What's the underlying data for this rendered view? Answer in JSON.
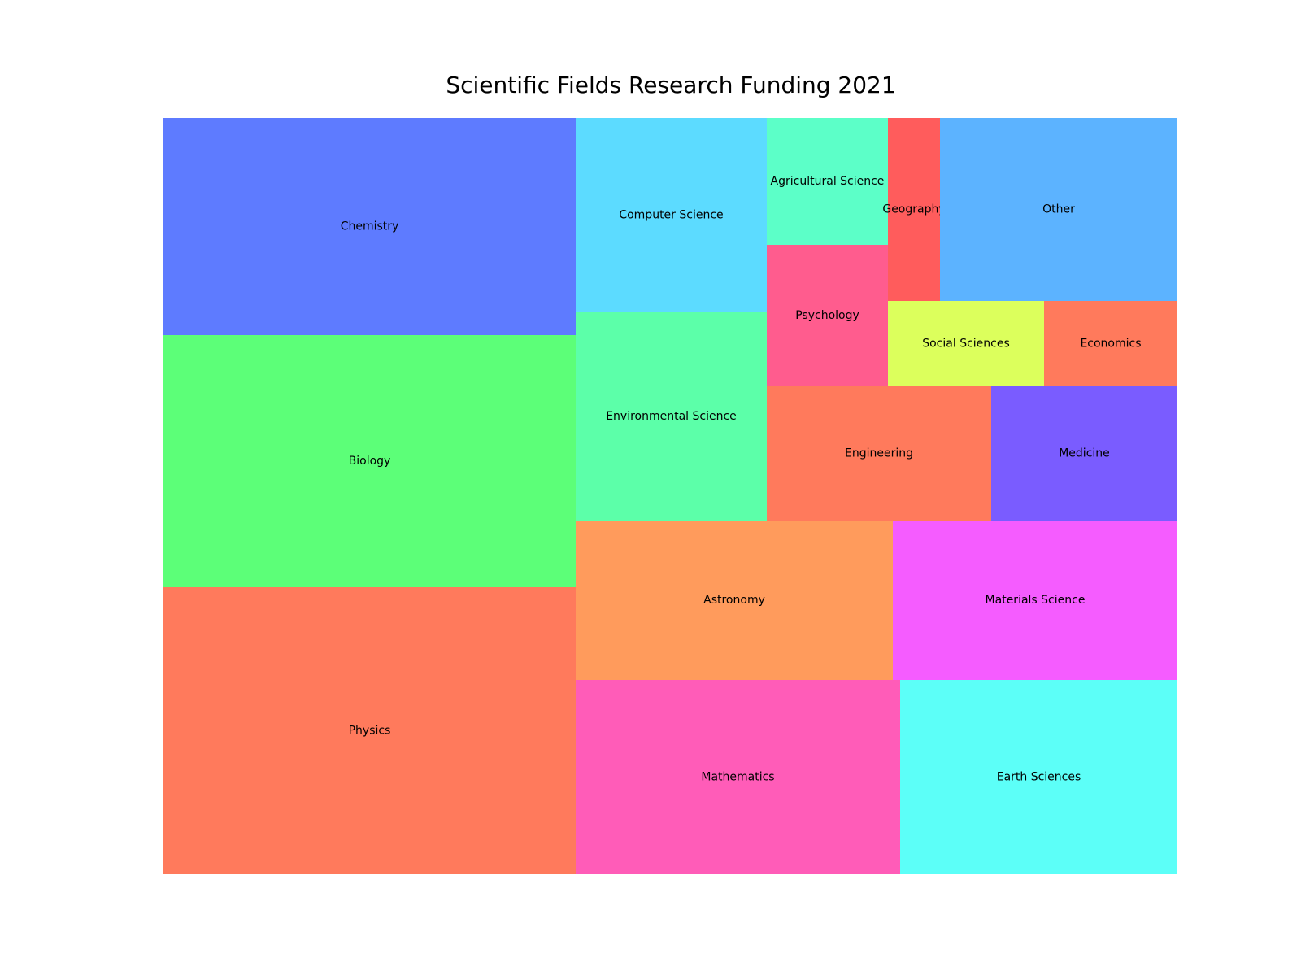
{
  "chart_data": {
    "type": "treemap",
    "title": "Scientific Fields Research Funding 2021",
    "categories": [
      "Physics",
      "Chemistry",
      "Biology",
      "Computer Science",
      "Environmental Science",
      "Agricultural Science",
      "Psychology",
      "Geography",
      "Other",
      "Social Sciences",
      "Economics",
      "Engineering",
      "Medicine",
      "Astronomy",
      "Materials Science",
      "Mathematics",
      "Earth Sciences"
    ],
    "values": [
      19.7,
      15.0,
      17.4,
      6.0,
      6.4,
      2.5,
      2.8,
      1.6,
      7.0,
      2.2,
      1.8,
      4.8,
      4.0,
      8.0,
      7.2,
      10.0,
      8.6
    ],
    "colors": [
      "#ff7a5c",
      "#5e7bff",
      "#5cff78",
      "#5cdbff",
      "#5cffa9",
      "#5cffc8",
      "#ff5c8e",
      "#ff5c5c",
      "#5cb3ff",
      "#dcff5c",
      "#ff7a5c",
      "#ff7a5c",
      "#7a5cff",
      "#ff9b5c",
      "#f55cff",
      "#ff5cb8",
      "#5cfff8"
    ]
  }
}
